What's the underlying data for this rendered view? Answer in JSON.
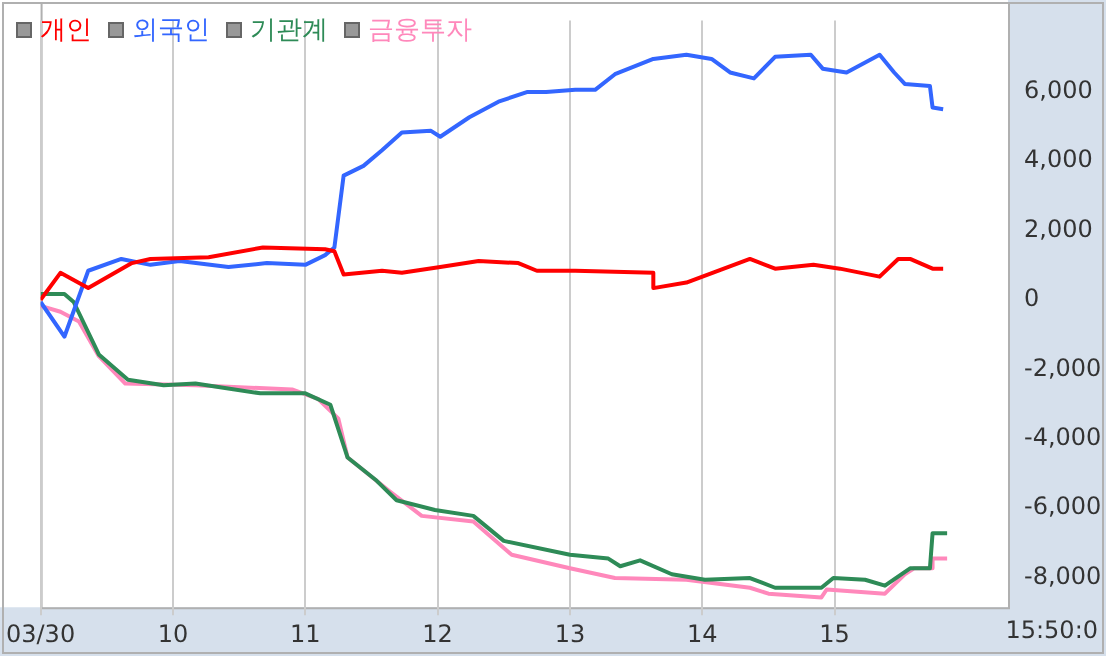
{
  "chart_data": {
    "type": "line",
    "legend": "top left",
    "grid": "x",
    "marker": "none",
    "line_style": "solid",
    "xlim": [
      9,
      16.31
    ],
    "xticks": [
      {
        "value": 9,
        "label": "03/30"
      },
      10,
      11,
      12,
      13,
      14,
      15
    ],
    "ylim": [
      -8850,
      8050
    ],
    "yticks": [
      {
        "value": -8000,
        "label": "-8,000"
      },
      {
        "value": -6000,
        "label": "-6,000"
      },
      {
        "value": -4000,
        "label": "-4,000"
      },
      {
        "value": -2000,
        "label": "-2,000"
      },
      0,
      {
        "value": 2000,
        "label": "2,000"
      },
      {
        "value": 4000,
        "label": "4,000"
      },
      {
        "value": 6000,
        "label": "6,000"
      }
    ],
    "annotations": [
      "15:50:0"
    ],
    "series": [
      {
        "name": "개인",
        "color": "#ff0000",
        "x": [
          9.0,
          9.15,
          9.36,
          9.69,
          9.83,
          10.27,
          10.68,
          11.15,
          11.22,
          11.29,
          11.58,
          11.73,
          12.02,
          12.31,
          12.61,
          12.75,
          13.04,
          13.63,
          13.63,
          13.88,
          14.36,
          14.55,
          14.84,
          15.04,
          15.34,
          15.48,
          15.57,
          15.74,
          15.82
        ],
        "values": [
          0,
          780,
          340,
          1060,
          1180,
          1230,
          1510,
          1460,
          1400,
          730,
          840,
          780,
          950,
          1120,
          1060,
          840,
          840,
          780,
          340,
          500,
          1180,
          900,
          1010,
          900,
          670,
          1180,
          1180,
          900,
          900
        ]
      },
      {
        "name": "외국인",
        "color": "#3366ff",
        "x": [
          9.0,
          9.18,
          9.36,
          9.61,
          9.83,
          10.05,
          10.42,
          10.71,
          11.0,
          11.15,
          11.22,
          11.29,
          11.44,
          11.58,
          11.73,
          11.95,
          12.02,
          12.24,
          12.46,
          12.68,
          12.82,
          13.04,
          13.19,
          13.34,
          13.63,
          13.88,
          14.07,
          14.21,
          14.39,
          14.55,
          14.82,
          14.91,
          15.09,
          15.34,
          15.45,
          15.53,
          15.72,
          15.74,
          15.82
        ],
        "values": [
          -60,
          -1060,
          840,
          1180,
          1010,
          1120,
          950,
          1060,
          1010,
          1290,
          1510,
          3580,
          3860,
          4310,
          4820,
          4870,
          4700,
          5260,
          5710,
          5990,
          5990,
          6050,
          6050,
          6500,
          6940,
          7060,
          6940,
          6550,
          6380,
          7000,
          7060,
          6660,
          6550,
          7060,
          6550,
          6220,
          6160,
          5540,
          5490
        ]
      },
      {
        "name": "기관계",
        "color": "#2e8b57",
        "x": [
          9.0,
          9.18,
          9.25,
          9.44,
          9.66,
          9.93,
          10.17,
          10.66,
          11.0,
          11.19,
          11.32,
          11.54,
          11.69,
          11.98,
          12.27,
          12.5,
          13.0,
          13.29,
          13.38,
          13.53,
          13.77,
          14.02,
          14.36,
          14.55,
          14.9,
          14.99,
          15.23,
          15.38,
          15.57,
          15.72,
          15.74,
          15.85
        ],
        "values": [
          170,
          170,
          -60,
          -1570,
          -2300,
          -2460,
          -2410,
          -2690,
          -2690,
          -3020,
          -4540,
          -5210,
          -5770,
          -6050,
          -6220,
          -6940,
          -7340,
          -7450,
          -7670,
          -7500,
          -7900,
          -8060,
          -8010,
          -8290,
          -8290,
          -8010,
          -8060,
          -8230,
          -7730,
          -7730,
          -6720,
          -6720
        ]
      },
      {
        "name": "금융투자",
        "color": "#ff88bb",
        "x": [
          9.0,
          9.15,
          9.29,
          9.44,
          9.64,
          10.17,
          10.9,
          11.1,
          11.25,
          11.32,
          11.63,
          11.88,
          12.27,
          12.56,
          13.0,
          13.34,
          13.88,
          14.36,
          14.5,
          14.9,
          14.94,
          15.38,
          15.53,
          15.6,
          15.74,
          15.74,
          15.85
        ],
        "values": [
          -170,
          -340,
          -620,
          -1620,
          -2410,
          -2460,
          -2580,
          -2860,
          -3420,
          -4540,
          -5490,
          -6220,
          -6380,
          -7340,
          -7730,
          -8010,
          -8060,
          -8290,
          -8460,
          -8570,
          -8340,
          -8460,
          -7900,
          -7730,
          -7730,
          -7450,
          -7450
        ]
      }
    ]
  }
}
